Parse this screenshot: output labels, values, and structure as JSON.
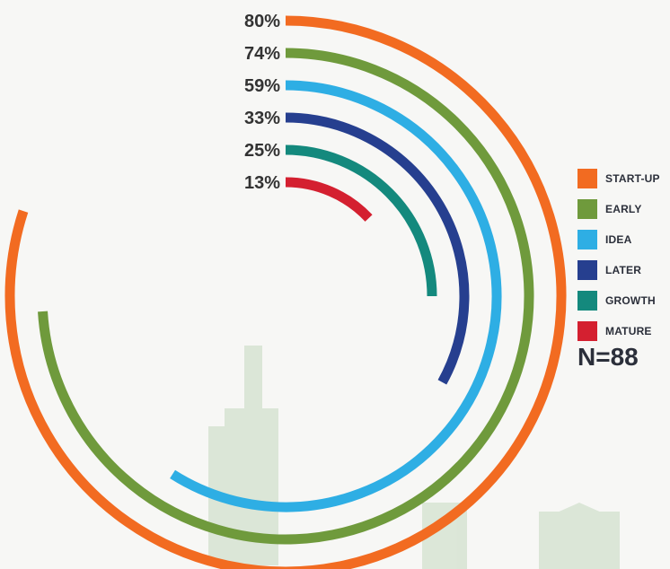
{
  "chart_data": {
    "type": "radial-bar",
    "series": [
      {
        "name": "START-UP",
        "value": 80,
        "label": "80%",
        "color": "#f26b21"
      },
      {
        "name": "EARLY",
        "value": 74,
        "label": "74%",
        "color": "#6f9a3c"
      },
      {
        "name": "IDEA",
        "value": 59,
        "label": "59%",
        "color": "#2eaee4"
      },
      {
        "name": "LATER",
        "value": 33,
        "label": "33%",
        "color": "#263f8f"
      },
      {
        "name": "GROWTH",
        "value": 25,
        "label": "25%",
        "color": "#14897d"
      },
      {
        "name": "MATURE",
        "value": 13,
        "label": "13%",
        "color": "#d42030"
      }
    ],
    "max": 100,
    "legend": "right",
    "note": "N=88"
  }
}
